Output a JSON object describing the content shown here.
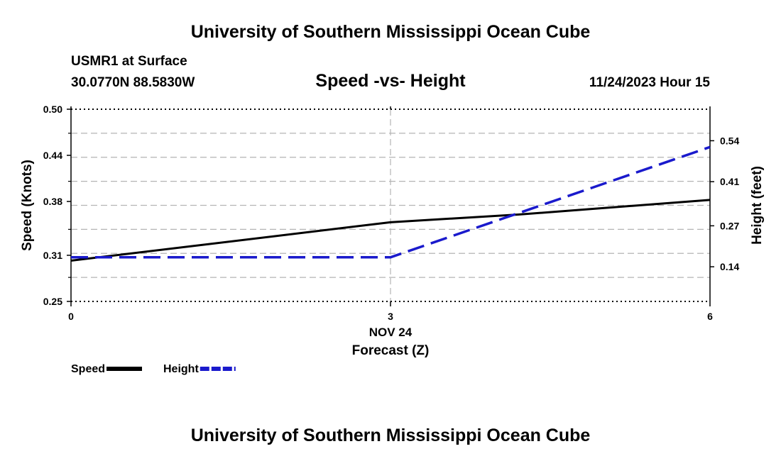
{
  "header": {
    "title": "University of Southern Mississippi Ocean Cube",
    "station": "USMR1 at Surface",
    "coords": "30.0770N  88.5830W",
    "datetime": "11/24/2023 Hour 15"
  },
  "footer": {
    "title": "University of Southern Mississippi Ocean Cube"
  },
  "chart_data": {
    "type": "line",
    "title": "Speed -vs- Height",
    "xlabel_date": "NOV 24",
    "xlabel": "Forecast (Z)",
    "ylabel": "Speed (Knots)",
    "ylabel_right": "Height (feet)",
    "x": [
      0,
      3,
      6
    ],
    "xlim": [
      0,
      6
    ],
    "xticks": [
      "0",
      "3",
      "6"
    ],
    "ylim": [
      0.25,
      0.5
    ],
    "yticks": [
      "0.25",
      "0.31",
      "0.38",
      "0.44",
      "0.50"
    ],
    "ylim_right": [
      0.03,
      0.64
    ],
    "yticks_right": [
      "0.14",
      "0.27",
      "0.41",
      "0.54"
    ],
    "grid": true,
    "legend_position": "bottom-left",
    "series": [
      {
        "name": "Speed",
        "axis": "left",
        "color": "#000000",
        "dash": "solid",
        "x": [
          0,
          3,
          4.2,
          6
        ],
        "values": [
          0.303,
          0.353,
          0.363,
          0.382
        ]
      },
      {
        "name": "Height",
        "axis": "right",
        "color": "#1a1acc",
        "dash": "dashed",
        "x": [
          0,
          3,
          6
        ],
        "values": [
          0.17,
          0.17,
          0.52
        ]
      }
    ],
    "legend": [
      "Speed",
      "Height"
    ]
  }
}
